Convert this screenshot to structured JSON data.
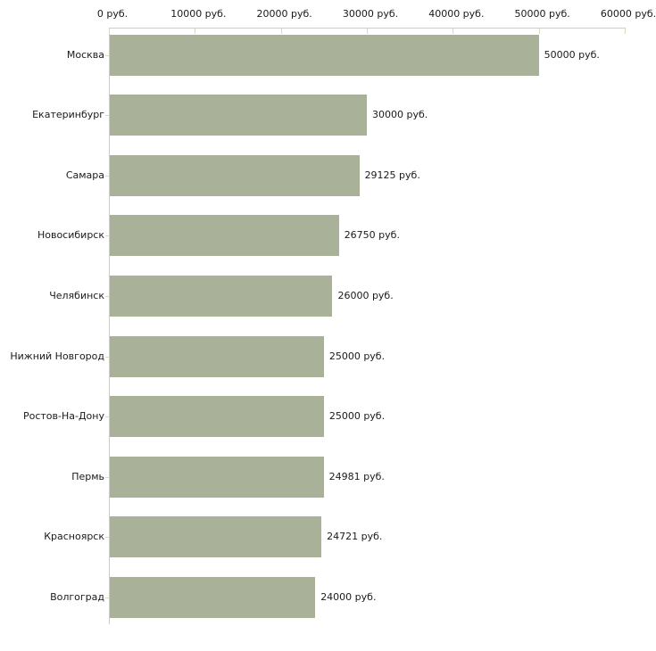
{
  "chart_data": {
    "type": "bar",
    "orientation": "horizontal",
    "categories": [
      "Москва",
      "Екатеринбург",
      "Самара",
      "Новосибирск",
      "Челябинск",
      "Нижний Новгород",
      "Ростов-На-Дону",
      "Пермь",
      "Красноярск",
      "Волгоград"
    ],
    "values": [
      50000,
      30000,
      29125,
      26750,
      26000,
      25000,
      25000,
      24981,
      24721,
      24000
    ],
    "value_labels": [
      "50000 руб.",
      "30000 руб.",
      "29125 руб.",
      "26750 руб.",
      "26000 руб.",
      "25000 руб.",
      "25000 руб.",
      "24981 руб.",
      "24721 руб.",
      "24000 руб."
    ],
    "x_axis": {
      "position": "top",
      "min": 0,
      "max": 60000,
      "ticks": [
        0,
        10000,
        20000,
        30000,
        40000,
        50000,
        60000
      ],
      "tick_labels": [
        "0 руб.",
        "10000 руб.",
        "20000 руб.",
        "30000 руб.",
        "40000 руб.",
        "50000 руб.",
        "60000 руб."
      ]
    },
    "grid": false,
    "legend": false,
    "colors": {
      "bar": "#aab199",
      "axis_line": "#cccccc",
      "tick_mark": "#d8dbbd",
      "text": "#1a1a1a",
      "background": "#ffffff"
    }
  }
}
